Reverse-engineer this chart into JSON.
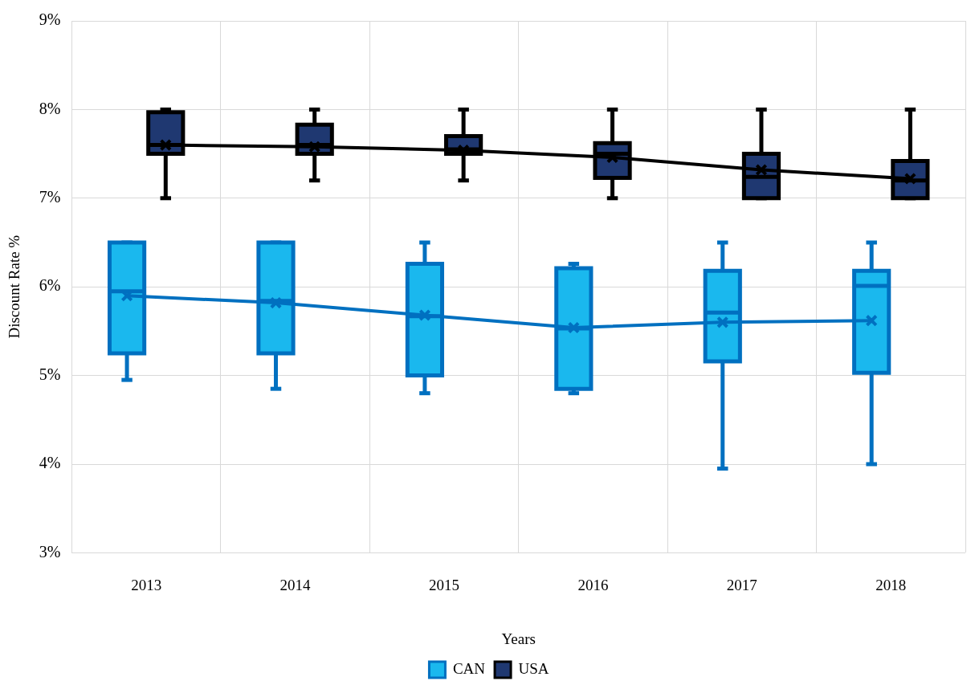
{
  "chart_data": {
    "type": "box",
    "xlabel": "Years",
    "ylabel": "Discount Rate %",
    "categories": [
      "2013",
      "2014",
      "2015",
      "2016",
      "2017",
      "2018"
    ],
    "ylim": [
      3,
      9
    ],
    "yticks": [
      {
        "value": 3,
        "label": "3%"
      },
      {
        "value": 4,
        "label": "4%"
      },
      {
        "value": 5,
        "label": "5%"
      },
      {
        "value": 6,
        "label": "6%"
      },
      {
        "value": 7,
        "label": "7%"
      },
      {
        "value": 8,
        "label": "8%"
      },
      {
        "value": 9,
        "label": "9%"
      }
    ],
    "grid": true,
    "legend": "bottom",
    "marker": "cross",
    "series": [
      {
        "name": "CAN",
        "color": "#0070c0",
        "colors": [
          "#1ab8ee",
          "#1ab8ee",
          "#1ab8ee",
          "#1ab8ee",
          "#1ab8ee",
          "#1ab8ee"
        ],
        "boxes": [
          {
            "low": 4.95,
            "q1": 5.25,
            "median": 5.95,
            "q3": 6.5,
            "high": 6.5,
            "mean": 5.9
          },
          {
            "low": 4.85,
            "q1": 5.25,
            "median": 5.84,
            "q3": 6.5,
            "high": 6.5,
            "mean": 5.82
          },
          {
            "low": 4.8,
            "q1": 5.0,
            "median": 5.67,
            "q3": 6.26,
            "high": 6.5,
            "mean": 5.68
          },
          {
            "low": 4.8,
            "q1": 4.85,
            "median": 5.53,
            "q3": 6.21,
            "high": 6.26,
            "mean": 5.54
          },
          {
            "low": 3.95,
            "q1": 5.16,
            "median": 5.71,
            "q3": 6.18,
            "high": 6.5,
            "mean": 5.6
          },
          {
            "low": 4.0,
            "q1": 5.03,
            "median": 6.01,
            "q3": 6.18,
            "high": 6.5,
            "mean": 5.62
          }
        ]
      },
      {
        "type": "line",
        "marker": "none",
        "color": "#0070c0",
        "values": [
          5.9,
          5.82,
          5.68,
          5.54,
          5.6,
          5.62
        ]
      },
      {
        "name": "USA",
        "color": "#000000",
        "colors": [
          "#1f3871",
          "#1f3871",
          "#1f3871",
          "#1f3871",
          "#1f3871",
          "#1f3871"
        ],
        "boxes": [
          {
            "low": 7.0,
            "q1": 7.5,
            "median": 7.6,
            "q3": 7.97,
            "high": 8.0,
            "mean": 7.6
          },
          {
            "low": 7.2,
            "q1": 7.5,
            "median": 7.6,
            "q3": 7.83,
            "high": 8.0,
            "mean": 7.58
          },
          {
            "low": 7.2,
            "q1": 7.5,
            "median": 7.55,
            "q3": 7.7,
            "high": 8.0,
            "mean": 7.54
          },
          {
            "low": 7.0,
            "q1": 7.23,
            "median": 7.5,
            "q3": 7.62,
            "high": 8.0,
            "mean": 7.46
          },
          {
            "low": 7.0,
            "q1": 7.0,
            "median": 7.24,
            "q3": 7.5,
            "high": 8.0,
            "mean": 7.32
          },
          {
            "low": 7.0,
            "q1": 7.0,
            "median": 7.2,
            "q3": 7.42,
            "high": 8.0,
            "mean": 7.22
          }
        ]
      },
      {
        "type": "line",
        "marker": "none",
        "color": "#000000",
        "values": [
          7.6,
          7.58,
          7.54,
          7.46,
          7.32,
          7.22
        ]
      }
    ]
  }
}
